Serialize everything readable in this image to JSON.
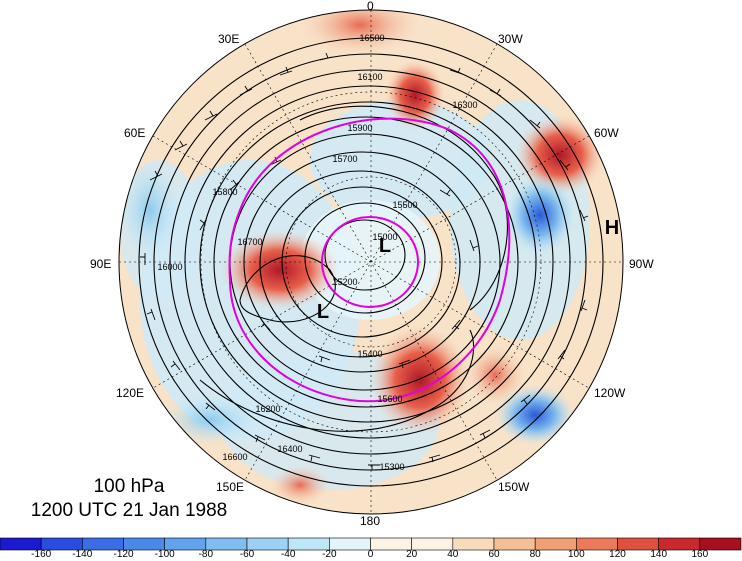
{
  "map": {
    "longitude_labels": [
      "0",
      "30W",
      "60W",
      "90W",
      "120W",
      "150W",
      "180",
      "150E",
      "120E",
      "90E",
      "60E",
      "30E"
    ],
    "contour_labels": [
      "16500",
      "16300",
      "16100",
      "15900",
      "15700",
      "15500",
      "15300",
      "15400",
      "15600",
      "16200",
      "16400",
      "16600",
      "16000",
      "15800",
      "15200",
      "16700",
      "15000"
    ],
    "pressure_systems": [
      "L",
      "L",
      "H"
    ],
    "colors": {
      "negative_strong": "#1e32d2",
      "negative_light": "#b4e6f5",
      "positive_light": "#f5d2b4",
      "positive_strong": "#aa1428",
      "contour": "#000000",
      "highlight_contour": "#e000e0"
    }
  },
  "title": {
    "line1": "100 hPa",
    "line2": "1200 UTC 21 Jan 1988"
  },
  "colorbar": {
    "ticks": [
      "-160",
      "-140",
      "-120",
      "-100",
      "-80",
      "-60",
      "-40",
      "-20",
      "0",
      "20",
      "40",
      "60",
      "80",
      "100",
      "120",
      "140",
      "160"
    ],
    "colors": [
      "#1a1ad0",
      "#2a4ce0",
      "#3a6de6",
      "#4a89ea",
      "#62a3ee",
      "#80bdf2",
      "#9dd2f4",
      "#bde6f7",
      "#e1f5fb",
      "#fdf3e3",
      "#f9dcbc",
      "#f5bf95",
      "#f19f74",
      "#ec7a5a",
      "#e0503f",
      "#c8282e",
      "#a50f1f"
    ]
  }
}
